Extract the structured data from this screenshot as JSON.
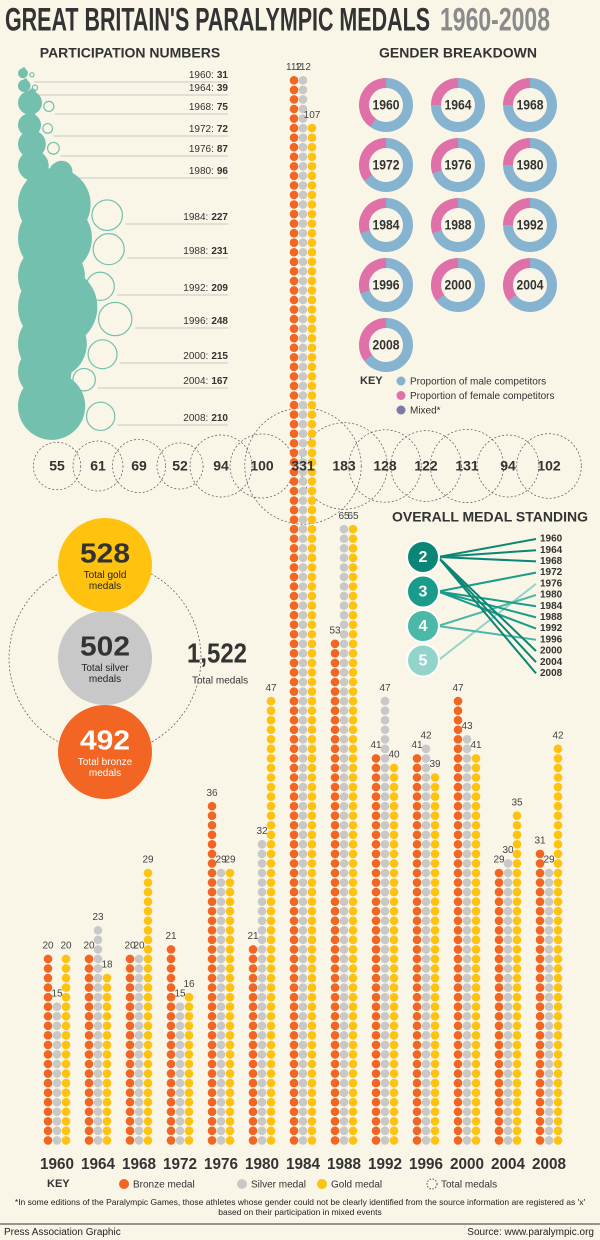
{
  "title": "GREAT BRITAIN'S PARALYMPIC MEDALS",
  "subtitle": "1960-2008",
  "participation": {
    "heading": "PARTICIPATION NUMBERS",
    "color": "#74c0af",
    "labels": [
      "1960:",
      "1964:",
      "1968:",
      "1972:",
      "1976:",
      "1980:",
      "1984:",
      "1988:",
      "1992:",
      "1996:",
      "2000:",
      "2004:",
      "2008:"
    ],
    "values": [
      31,
      39,
      75,
      72,
      87,
      96,
      227,
      231,
      209,
      248,
      215,
      167,
      210
    ]
  },
  "gender": {
    "heading": "GENDER BREAKDOWN",
    "male_color": "#86b4d0",
    "female_color": "#e070a8",
    "mixed_color": "#7d7aa8",
    "years": [
      "1960",
      "1964",
      "1968",
      "1972",
      "1976",
      "1980",
      "1984",
      "1988",
      "1992",
      "1996",
      "2000",
      "2004",
      "2008"
    ],
    "male": [
      60,
      75,
      75,
      65,
      70,
      75,
      70,
      70,
      75,
      70,
      65,
      65,
      65
    ],
    "female": [
      40,
      25,
      25,
      35,
      30,
      25,
      30,
      30,
      25,
      30,
      35,
      35,
      35
    ],
    "key_heading": "KEY",
    "key": [
      "Proportion of male competitors",
      "Proportion of female competitors",
      "Mixed*"
    ]
  },
  "total_medals": [
    55,
    61,
    69,
    52,
    94,
    100,
    331,
    183,
    128,
    122,
    131,
    94,
    102
  ],
  "standing": {
    "heading": "OVERALL MEDAL STANDING",
    "ranks": [
      2,
      3,
      4,
      5
    ],
    "colors": [
      "#0b8676",
      "#1a9c8a",
      "#4cb8a8",
      "#92d4ca"
    ],
    "years": [
      "1960",
      "1964",
      "1968",
      "1972",
      "1976",
      "1980",
      "1984",
      "1988",
      "1992",
      "1996",
      "2000",
      "2004",
      "2008"
    ],
    "year_ranks": [
      2,
      2,
      2,
      3,
      5,
      4,
      3,
      3,
      3,
      4,
      2,
      2,
      2
    ]
  },
  "summary": {
    "gold": 528,
    "gold_label": "Total gold medals",
    "silver": 502,
    "silver_label": "Total silver medals",
    "bronze": 492,
    "bronze_label": "Total bronze medals",
    "total": {
      "value": 1522,
      "label": "1,522"
    },
    "total_label": "Total medals"
  },
  "chart_data": {
    "type": "bar",
    "categories": [
      "1960",
      "1964",
      "1968",
      "1972",
      "1976",
      "1980",
      "1984",
      "1988",
      "1992",
      "1996",
      "2000",
      "2004",
      "2008"
    ],
    "series": [
      {
        "name": "Bronze medal",
        "color": "#f26522",
        "values": [
          20,
          20,
          20,
          21,
          36,
          21,
          112,
          53,
          41,
          41,
          47,
          29,
          31
        ]
      },
      {
        "name": "Silver medal",
        "color": "#c8c8c8",
        "values": [
          15,
          23,
          20,
          15,
          29,
          32,
          112,
          65,
          47,
          42,
          43,
          30,
          29
        ]
      },
      {
        "name": "Gold medal",
        "color": "#ffc20e",
        "values": [
          20,
          18,
          29,
          16,
          29,
          47,
          107,
          65,
          40,
          39,
          41,
          35,
          42
        ]
      }
    ],
    "key_heading": "KEY",
    "total_key": "Total medals"
  },
  "footnote": "*In some editions of the Paralympic Games, those athletes whose gender could not be clearly identified from the source information are registered as 'x' based on their participation in mixed events",
  "credit": "Press Association Graphic",
  "source": "Source: www.paralympic.org"
}
